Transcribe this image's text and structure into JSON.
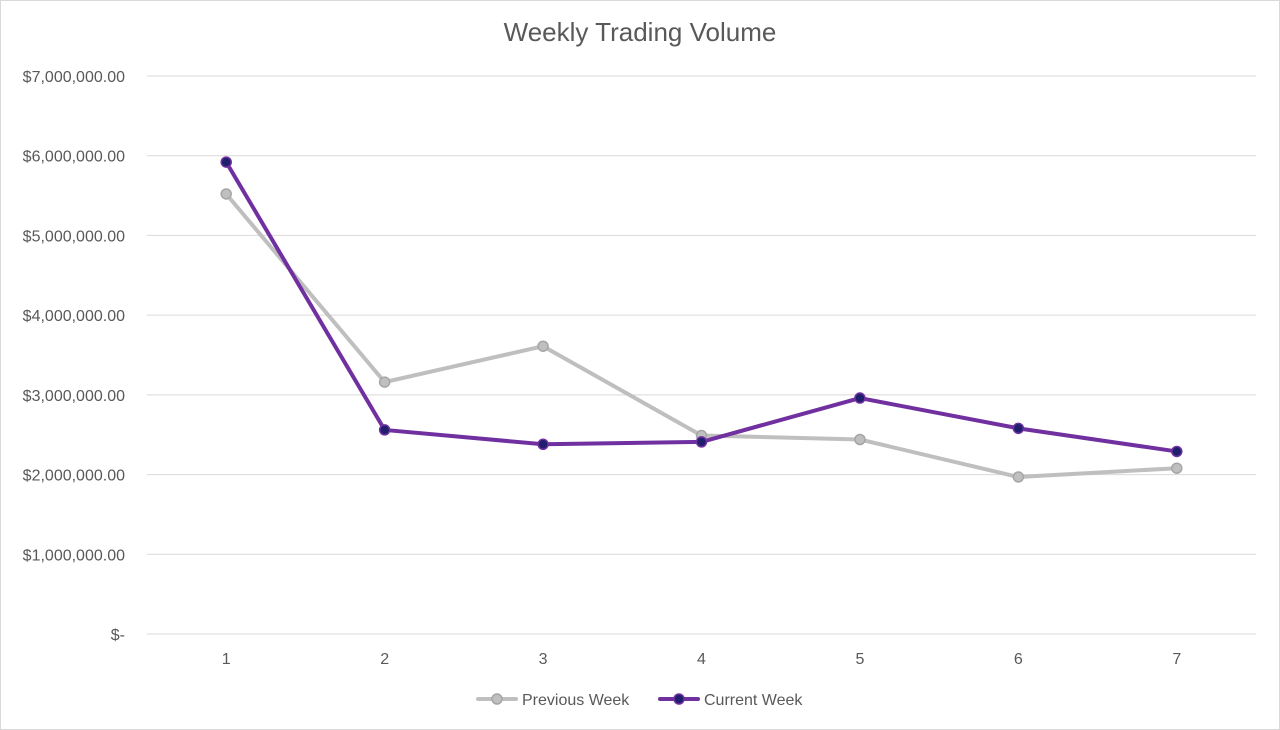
{
  "chart_data": {
    "type": "line",
    "title": "Weekly Trading Volume",
    "xlabel": "",
    "ylabel": "",
    "categories": [
      "1",
      "2",
      "3",
      "4",
      "5",
      "6",
      "7"
    ],
    "ylim": [
      0,
      7000000
    ],
    "y_ticks": [
      {
        "value": 0,
        "label": "$-"
      },
      {
        "value": 1000000,
        "label": "$1,000,000.00"
      },
      {
        "value": 2000000,
        "label": "$2,000,000.00"
      },
      {
        "value": 3000000,
        "label": "$3,000,000.00"
      },
      {
        "value": 4000000,
        "label": "$4,000,000.00"
      },
      {
        "value": 5000000,
        "label": "$5,000,000.00"
      },
      {
        "value": 6000000,
        "label": "$6,000,000.00"
      },
      {
        "value": 7000000,
        "label": "$7,000,000.00"
      }
    ],
    "grid": true,
    "legend_position": "bottom",
    "series": [
      {
        "name": "Previous Week",
        "line_color": "#bfbfbf",
        "marker_fill": "#bfbfbf",
        "marker_stroke": "#a6a6a6",
        "values": [
          5520000,
          3160000,
          3610000,
          2490000,
          2440000,
          1970000,
          2080000
        ]
      },
      {
        "name": "Current Week",
        "line_color": "#7030a0",
        "marker_fill": "#1f1f6e",
        "marker_stroke": "#7030a0",
        "values": [
          5920000,
          2560000,
          2380000,
          2410000,
          2960000,
          2580000,
          2290000
        ]
      }
    ]
  }
}
